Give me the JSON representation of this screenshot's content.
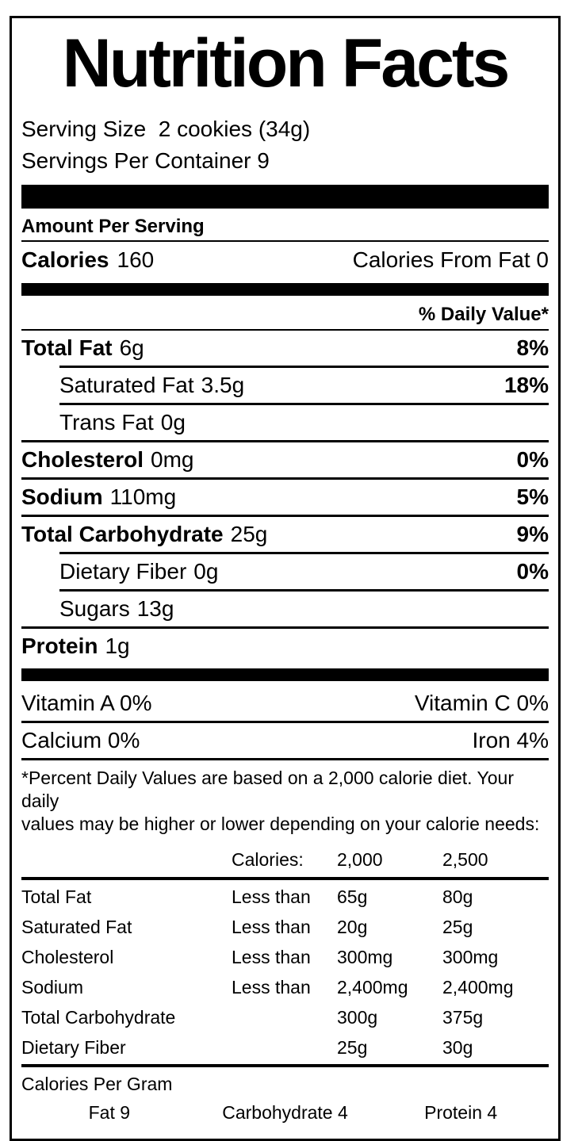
{
  "title": "Nutrition Facts",
  "serving": {
    "size_line": "Serving Size  2 cookies (34g)",
    "per_container_line": "Servings Per Container 9"
  },
  "amount_per_serving": "Amount Per Serving",
  "calories": {
    "label": "Calories",
    "value": "160",
    "from_fat": "Calories From Fat 0"
  },
  "daily_value_header": "% Daily Value*",
  "nutrients": [
    {
      "name": "Total Fat",
      "amount": "6g",
      "dv": "8%"
    },
    {
      "name": "Saturated Fat",
      "amount": "3.5g",
      "dv": ""
    },
    {
      "name": "Trans Fat",
      "amount": "0g",
      "dv": ""
    },
    {
      "name": "Cholesterol",
      "amount": "0mg",
      "dv": "0%"
    },
    {
      "name": "Sodium",
      "amount": "110mg",
      "dv": "5%"
    },
    {
      "name": "Total Carbohydrate",
      "amount": "25g",
      "dv": "9%"
    },
    {
      "name": "Dietary Fiber",
      "amount": "0g",
      "dv": "0%"
    },
    {
      "name": "Sugars",
      "amount": "13g",
      "dv": ""
    },
    {
      "name": "Protein",
      "amount": "1g",
      "dv": ""
    }
  ],
  "nutrients_dv_fix": {
    "saturated_fat_dv": "18%"
  },
  "vitamins": {
    "rows": [
      {
        "left": "Vitamin A 0%",
        "right": "Vitamin C 0%"
      },
      {
        "left": "Calcium 0%",
        "right": "Iron 4%"
      }
    ]
  },
  "footnote": {
    "line1": "*Percent Daily Values are based on a 2,000 calorie diet. Your daily",
    "line2": "values may be higher or lower depending on your calorie needs:"
  },
  "dv_table": {
    "header": {
      "calories_label": "Calories:",
      "col_2000": "2,000",
      "col_2500": "2,500"
    },
    "rows": [
      {
        "name": "Total Fat",
        "qualifier": "Less than",
        "v2000": "65g",
        "v2500": "80g"
      },
      {
        "name": "Saturated Fat",
        "qualifier": "Less than",
        "v2000": "20g",
        "v2500": "25g"
      },
      {
        "name": "Cholesterol",
        "qualifier": "Less than",
        "v2000": "300mg",
        "v2500": "300mg"
      },
      {
        "name": "Sodium",
        "qualifier": "Less than",
        "v2000": "2,400mg",
        "v2500": "2,400mg"
      },
      {
        "name": "Total Carbohydrate",
        "qualifier": "",
        "v2000": "300g",
        "v2500": "375g"
      },
      {
        "name": "Dietary Fiber",
        "qualifier": "",
        "v2000": "25g",
        "v2500": "30g"
      }
    ]
  },
  "calories_per_gram": {
    "heading": "Calories Per Gram",
    "items": [
      "Fat 9",
      "Carbohydrate 4",
      "Protein 4"
    ]
  },
  "colors": {
    "ink": "#000000",
    "background": "#ffffff"
  }
}
